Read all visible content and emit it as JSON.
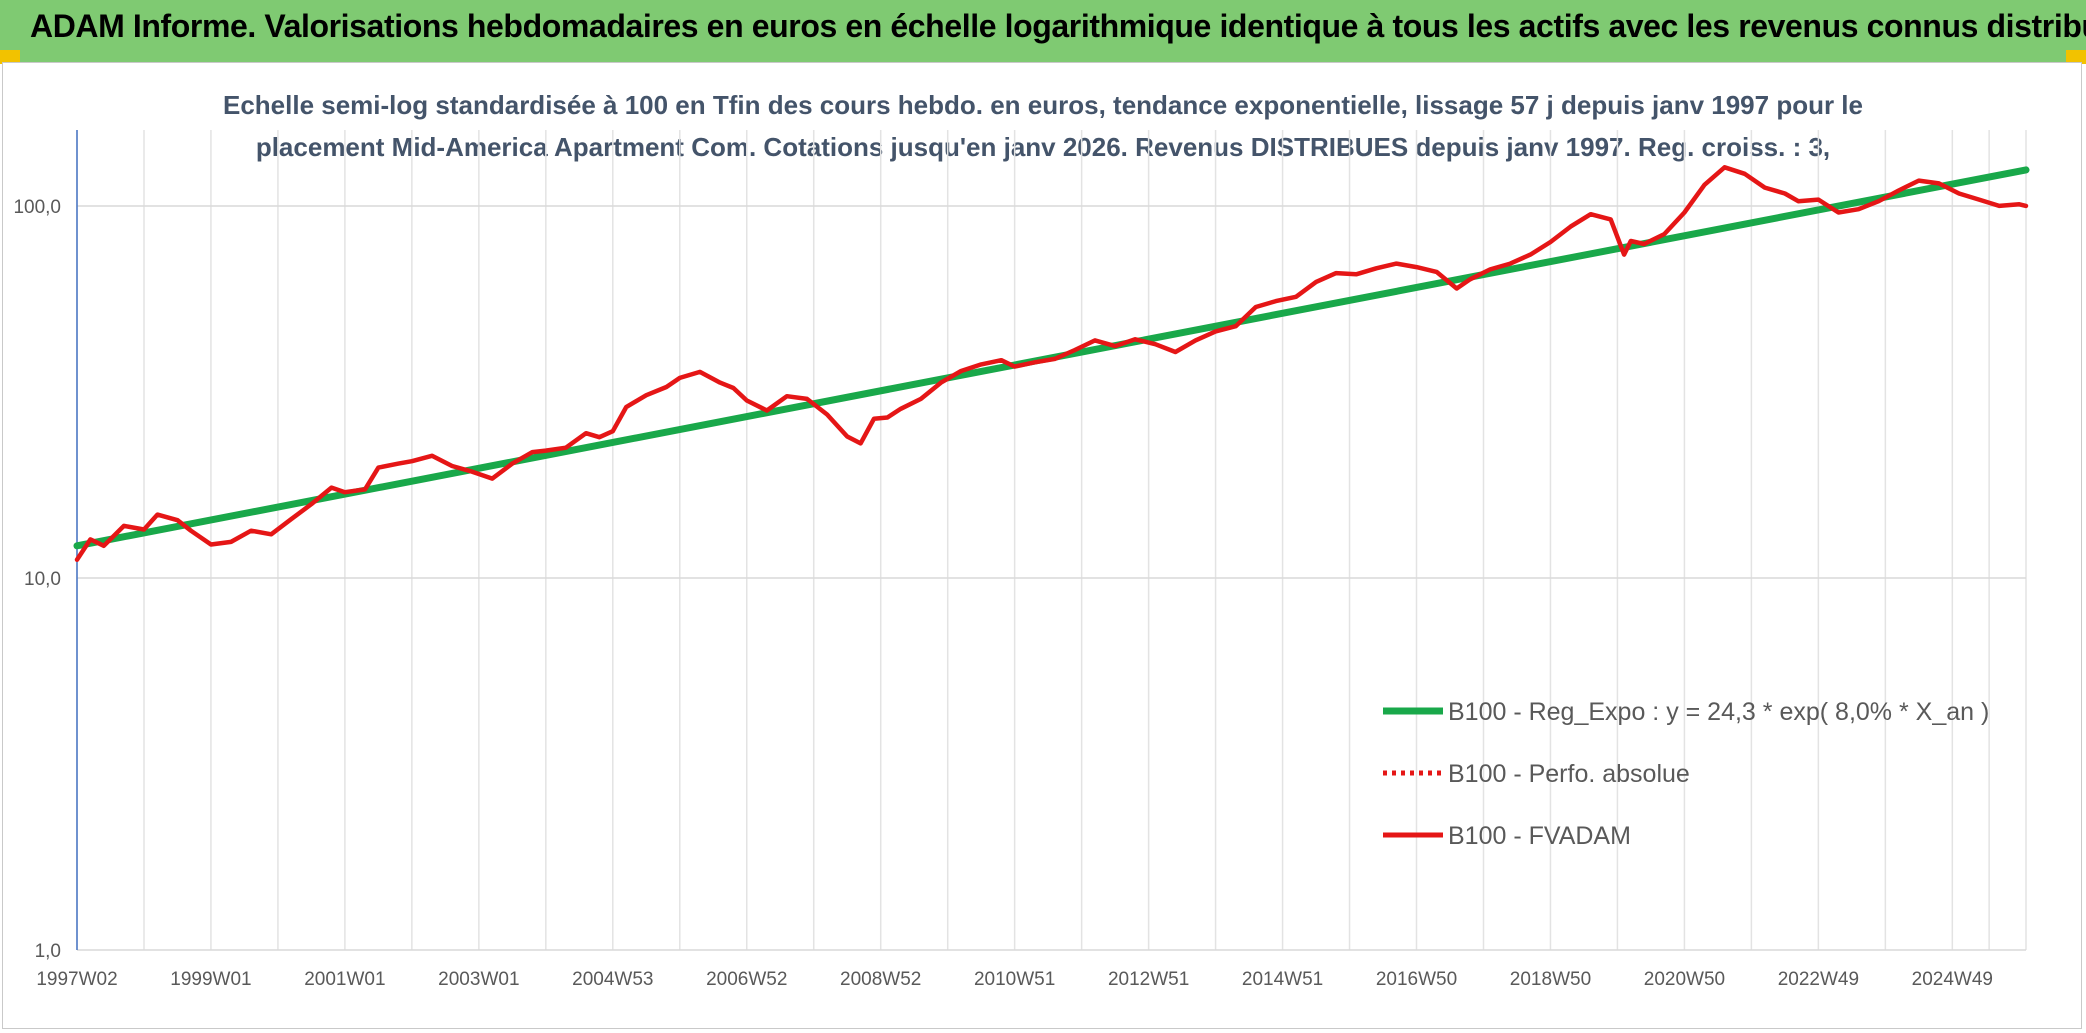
{
  "header": {
    "title": "ADAM Informe. Valorisations hebdomadaires en euros en échelle logarithmique identique à tous les actifs avec les revenus connus distribués"
  },
  "chart_data": {
    "type": "line",
    "title_line1": "Echelle semi-log standardisée à 100 en Tfin des cours hebdo. en euros, tendance exponentielle, lissage 57 j depuis janv 1997 pour le",
    "title_line2": "placement Mid-America Apartment Com. Cotations jusqu'en janv 2026. Revenus DISTRIBUES depuis janv 1997. Reg. croiss. : 3,",
    "y_scale": "log",
    "ylim": [
      1,
      160
    ],
    "y_ticks": [
      {
        "value": 1,
        "label": "1,0"
      },
      {
        "value": 10,
        "label": "10,0"
      },
      {
        "value": 100,
        "label": "100,0"
      }
    ],
    "xlim": [
      1997.0,
      2026.1
    ],
    "x_ticks": [
      {
        "value": 1997.0,
        "label": "1997W02"
      },
      {
        "value": 1999.0,
        "label": "1999W01"
      },
      {
        "value": 2001.0,
        "label": "2001W01"
      },
      {
        "value": 2003.0,
        "label": "2003W01"
      },
      {
        "value": 2005.0,
        "label": "2004W53"
      },
      {
        "value": 2007.0,
        "label": "2006W52"
      },
      {
        "value": 2009.0,
        "label": "2008W52"
      },
      {
        "value": 2011.0,
        "label": "2010W51"
      },
      {
        "value": 2013.0,
        "label": "2012W51"
      },
      {
        "value": 2015.0,
        "label": "2014W51"
      },
      {
        "value": 2017.0,
        "label": "2016W50"
      },
      {
        "value": 2019.0,
        "label": "2018W50"
      },
      {
        "value": 2021.0,
        "label": "2020W50"
      },
      {
        "value": 2023.0,
        "label": "2022W49"
      },
      {
        "value": 2025.0,
        "label": "2024W49"
      }
    ],
    "grid": "vertical",
    "legend_position": "bottom-right",
    "series": [
      {
        "name": "B100 - Reg_Expo : y = 24,3 * exp( 8,0% *  X_an )",
        "color": "#19a84a",
        "style": "solid",
        "x": [
          1997.0,
          2026.1
        ],
        "y": [
          12.2,
          125.0
        ]
      },
      {
        "name": "B100 - Perfo. absolue",
        "color": "#e51616",
        "style": "dotted",
        "x": [],
        "y": []
      },
      {
        "name": "B100 - FVADAM",
        "color": "#e51616",
        "style": "solid",
        "x": [
          1997.0,
          1997.2,
          1997.4,
          1997.7,
          1998.0,
          1998.2,
          1998.5,
          1998.7,
          1999.0,
          1999.3,
          1999.6,
          1999.9,
          2000.2,
          2000.5,
          2000.8,
          2001.0,
          2001.3,
          2001.5,
          2001.8,
          2002.0,
          2002.3,
          2002.6,
          2002.9,
          2003.2,
          2003.5,
          2003.8,
          2004.0,
          2004.3,
          2004.6,
          2004.8,
          2005.0,
          2005.2,
          2005.5,
          2005.8,
          2006.0,
          2006.3,
          2006.6,
          2006.8,
          2007.0,
          2007.3,
          2007.6,
          2007.9,
          2008.2,
          2008.5,
          2008.7,
          2008.9,
          2009.1,
          2009.3,
          2009.6,
          2009.9,
          2010.2,
          2010.5,
          2010.8,
          2011.0,
          2011.3,
          2011.6,
          2011.9,
          2012.2,
          2012.5,
          2012.8,
          2013.1,
          2013.4,
          2013.7,
          2014.0,
          2014.3,
          2014.6,
          2014.9,
          2015.2,
          2015.5,
          2015.8,
          2016.1,
          2016.4,
          2016.7,
          2017.0,
          2017.3,
          2017.6,
          2017.8,
          2018.1,
          2018.4,
          2018.7,
          2019.0,
          2019.3,
          2019.6,
          2019.9,
          2020.1,
          2020.2,
          2020.4,
          2020.7,
          2021.0,
          2021.3,
          2021.6,
          2021.9,
          2022.2,
          2022.5,
          2022.7,
          2023.0,
          2023.3,
          2023.6,
          2023.9,
          2024.2,
          2024.5,
          2024.8,
          2025.1,
          2025.4,
          2025.7,
          2026.0,
          2026.1
        ],
        "y": [
          11.2,
          12.7,
          12.2,
          13.8,
          13.5,
          14.8,
          14.3,
          13.4,
          12.3,
          12.5,
          13.4,
          13.1,
          14.4,
          15.8,
          17.5,
          17.0,
          17.3,
          19.8,
          20.3,
          20.6,
          21.3,
          20.0,
          19.3,
          18.5,
          20.3,
          21.8,
          22.0,
          22.4,
          24.5,
          23.9,
          24.8,
          28.8,
          31.0,
          32.6,
          34.5,
          35.8,
          33.5,
          32.4,
          30.0,
          28.2,
          30.8,
          30.3,
          27.5,
          24.0,
          23.0,
          26.8,
          27.0,
          28.5,
          30.3,
          33.5,
          36.0,
          37.5,
          38.5,
          37.0,
          38.0,
          38.8,
          41.0,
          43.5,
          42.0,
          43.8,
          42.5,
          40.5,
          43.5,
          46.0,
          47.5,
          53.5,
          55.5,
          57.0,
          62.5,
          66.0,
          65.5,
          68.0,
          70.0,
          68.5,
          66.5,
          60.0,
          63.5,
          67.5,
          70.0,
          74.0,
          80.0,
          88.0,
          95.0,
          92.0,
          74.0,
          80.5,
          79.0,
          84.0,
          96.0,
          114.0,
          127.0,
          122.0,
          112.0,
          108.0,
          103.0,
          104.0,
          96.0,
          98.0,
          103.0,
          110.0,
          117.0,
          115.0,
          108.0,
          104.0,
          100.0,
          101.0,
          100.0
        ]
      }
    ]
  }
}
